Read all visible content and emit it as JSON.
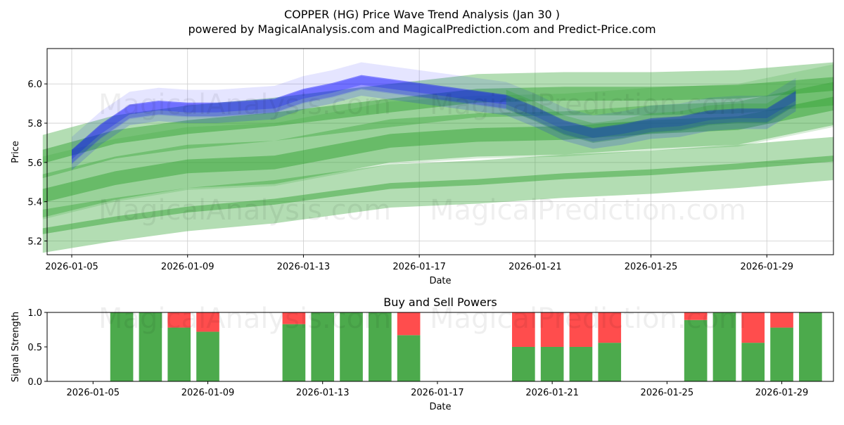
{
  "chart_data": [
    {
      "type": "area",
      "title": "COPPER (HG) Price Wave Trend Analysis (Jan 30 )",
      "subtitle": "powered by MagicalAnalysis.com and MagicalPrediction.com and Predict-Price.com",
      "xlabel": "Date",
      "ylabel": "Price",
      "x_range_days": [
        -0.85,
        26.3
      ],
      "ylim": [
        5.13,
        6.18
      ],
      "y_ticks": [
        5.2,
        5.4,
        5.6,
        5.8,
        6.0
      ],
      "y_tick_labels": [
        "5.2",
        "5.4",
        "5.6",
        "5.8",
        "6.0"
      ],
      "x_ticks_days": [
        0,
        4,
        8,
        12,
        16,
        20,
        24
      ],
      "x_tick_labels": [
        "2026-01-05",
        "2026-01-09",
        "2026-01-13",
        "2026-01-17",
        "2026-01-21",
        "2026-01-25",
        "2026-01-29"
      ],
      "grid": true,
      "series": [
        {
          "name": "Blue wave band",
          "color": "#0000ff",
          "days": [
            0,
            1,
            2,
            3,
            4,
            5,
            6,
            7,
            8,
            9,
            10,
            11,
            12,
            13,
            14,
            15,
            16,
            17,
            18,
            19,
            20,
            21,
            22,
            23,
            24,
            25
          ],
          "values": [
            5.63,
            5.76,
            5.86,
            5.88,
            5.87,
            5.87,
            5.88,
            5.89,
            5.94,
            5.97,
            6.01,
            5.99,
            5.97,
            5.95,
            5.93,
            5.91,
            5.85,
            5.78,
            5.74,
            5.76,
            5.79,
            5.8,
            5.83,
            5.84,
            5.84,
            5.93
          ]
        },
        {
          "name": "Green trend top",
          "color": "#2ca02c",
          "days": [
            -1,
            1.5,
            4,
            7,
            11,
            14,
            17,
            20,
            23,
            26.3
          ],
          "values": [
            5.63,
            5.73,
            5.78,
            5.82,
            5.89,
            5.94,
            5.95,
            5.95,
            5.96,
            6.0
          ]
        },
        {
          "name": "Green trend mid",
          "color": "#2ca02c",
          "days": [
            -1,
            1.5,
            4,
            7,
            11,
            14,
            17,
            20,
            23,
            26.3
          ],
          "values": [
            5.43,
            5.52,
            5.58,
            5.6,
            5.71,
            5.74,
            5.75,
            5.78,
            5.8,
            5.9
          ]
        },
        {
          "name": "Green trend low",
          "color": "#2ca02c",
          "days": [
            -1,
            1.5,
            4,
            7,
            11,
            14,
            17,
            20,
            23,
            26.3
          ],
          "values": [
            5.25,
            5.31,
            5.36,
            5.4,
            5.48,
            5.5,
            5.53,
            5.55,
            5.58,
            5.62
          ]
        }
      ],
      "watermarks": [
        "MagicalAnalysis.com",
        "MagicalPrediction.com"
      ]
    },
    {
      "type": "bar",
      "title": "Buy and Sell Powers",
      "xlabel": "Date",
      "ylabel": "Signal Strength",
      "ylim": [
        0,
        1
      ],
      "y_ticks": [
        0.0,
        0.5,
        1.0
      ],
      "y_tick_labels": [
        "0.0",
        "0.5",
        "1.0"
      ],
      "x_range_days": [
        -1.6,
        25.8
      ],
      "x_ticks_days": [
        0,
        4,
        8,
        12,
        16,
        20,
        24
      ],
      "x_tick_labels": [
        "2026-01-05",
        "2026-01-09",
        "2026-01-13",
        "2026-01-17",
        "2026-01-21",
        "2026-01-25",
        "2026-01-29"
      ],
      "series": [
        {
          "name": "Buy",
          "color": "#4caa4c",
          "days": [
            1,
            2,
            3,
            4,
            7,
            8,
            9,
            10,
            11,
            15,
            16,
            17,
            18,
            21,
            22,
            23,
            24,
            25
          ],
          "values": [
            1.0,
            1.0,
            0.78,
            0.72,
            0.83,
            1.0,
            1.0,
            1.0,
            0.67,
            0.5,
            0.5,
            0.5,
            0.56,
            0.89,
            1.0,
            0.56,
            0.78,
            1.0
          ]
        },
        {
          "name": "Sell",
          "color": "#ff4d4d",
          "days": [
            1,
            2,
            3,
            4,
            7,
            8,
            9,
            10,
            11,
            15,
            16,
            17,
            18,
            21,
            22,
            23,
            24,
            25
          ],
          "values": [
            0.0,
            0.0,
            0.22,
            0.28,
            0.17,
            0.0,
            0.0,
            0.0,
            0.33,
            0.5,
            0.5,
            0.5,
            0.44,
            0.11,
            0.0,
            0.44,
            0.22,
            0.0
          ]
        }
      ],
      "watermarks": [
        "MagicalAnalysis.com",
        "MagicalPrediction.com"
      ]
    }
  ]
}
